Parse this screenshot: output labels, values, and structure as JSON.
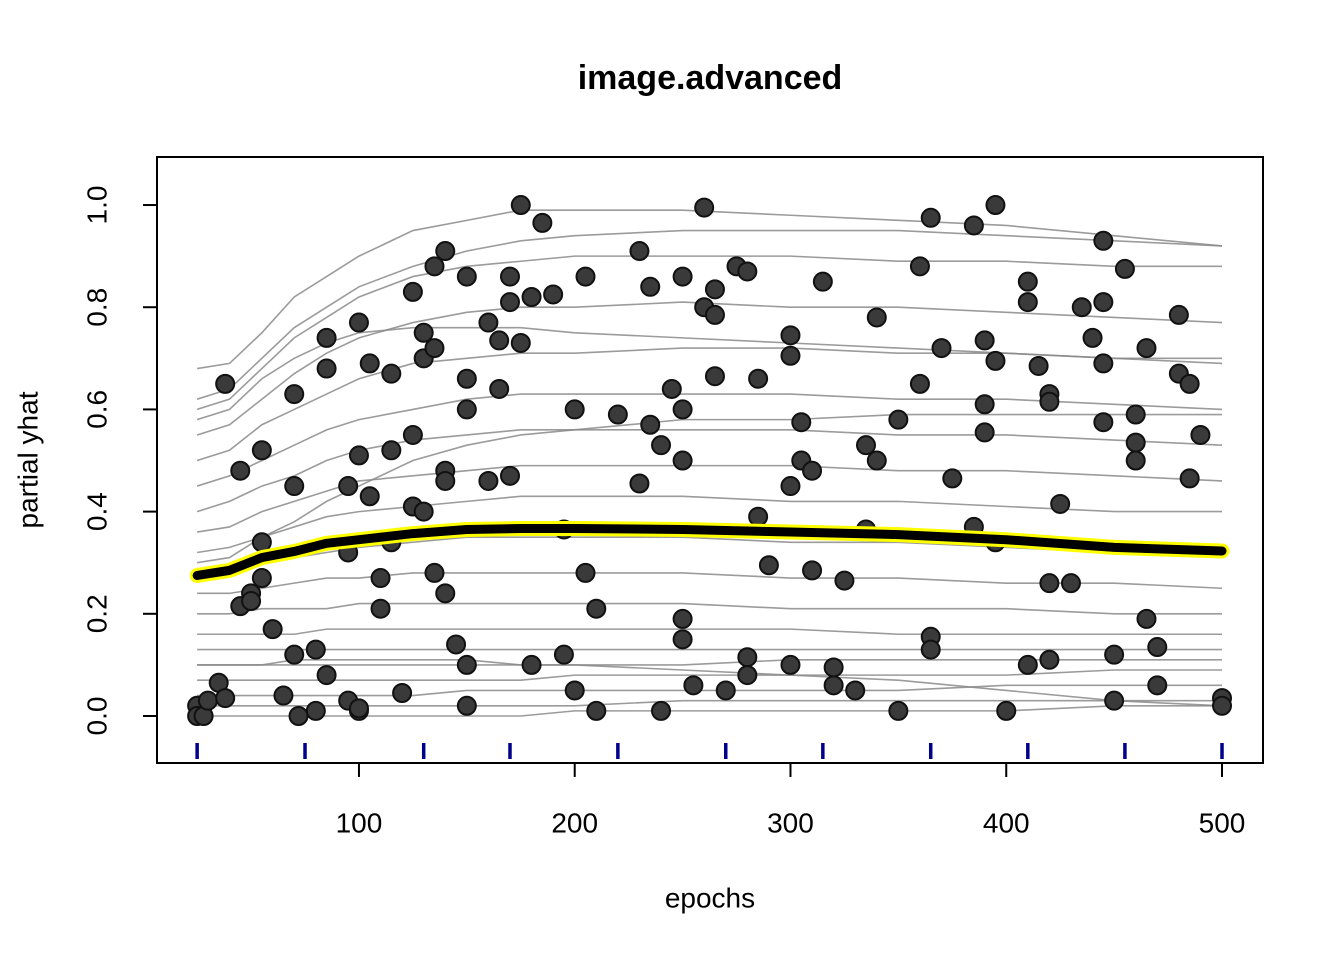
{
  "chart_data": {
    "type": "ice",
    "title": "image.advanced",
    "xlabel": "epochs",
    "ylabel": "partial yhat",
    "xlim": [
      6.4,
      519
    ],
    "ylim": [
      -0.092,
      1.094
    ],
    "xticks": [
      100,
      200,
      300,
      400,
      500
    ],
    "yticks": [
      {
        "value": 0,
        "label": "0.0"
      },
      0.2,
      0.4,
      0.6,
      0.8,
      {
        "value": 1,
        "label": "1.0"
      }
    ],
    "x": [
      25,
      40,
      55,
      70,
      85,
      100,
      125,
      150,
      175,
      200,
      250,
      300,
      350,
      400,
      450,
      500
    ],
    "ice_color": "#8a8a8a",
    "ice_lines": [
      [
        0.68,
        0.69,
        0.75,
        0.82,
        0.86,
        0.9,
        0.95,
        0.97,
        0.99,
        0.99,
        0.99,
        0.98,
        0.97,
        0.96,
        0.94,
        0.92
      ],
      [
        0.6,
        0.62,
        0.68,
        0.74,
        0.78,
        0.82,
        0.86,
        0.88,
        0.89,
        0.9,
        0.9,
        0.9,
        0.89,
        0.89,
        0.88,
        0.88
      ],
      [
        0.55,
        0.57,
        0.62,
        0.67,
        0.71,
        0.74,
        0.77,
        0.79,
        0.8,
        0.8,
        0.81,
        0.8,
        0.8,
        0.79,
        0.78,
        0.77
      ],
      [
        0.5,
        0.52,
        0.57,
        0.6,
        0.63,
        0.66,
        0.69,
        0.7,
        0.71,
        0.71,
        0.72,
        0.72,
        0.71,
        0.71,
        0.7,
        0.69
      ],
      [
        0.45,
        0.47,
        0.5,
        0.53,
        0.56,
        0.58,
        0.6,
        0.62,
        0.63,
        0.63,
        0.63,
        0.63,
        0.62,
        0.62,
        0.61,
        0.6
      ],
      [
        0.4,
        0.42,
        0.45,
        0.47,
        0.5,
        0.52,
        0.54,
        0.55,
        0.56,
        0.56,
        0.56,
        0.56,
        0.55,
        0.55,
        0.54,
        0.53
      ],
      [
        0.36,
        0.37,
        0.4,
        0.42,
        0.44,
        0.46,
        0.47,
        0.48,
        0.49,
        0.49,
        0.49,
        0.49,
        0.48,
        0.48,
        0.47,
        0.46
      ],
      [
        0.32,
        0.33,
        0.35,
        0.37,
        0.39,
        0.4,
        0.41,
        0.42,
        0.43,
        0.43,
        0.43,
        0.42,
        0.42,
        0.41,
        0.4,
        0.4
      ],
      [
        0.28,
        0.29,
        0.3,
        0.31,
        0.32,
        0.33,
        0.34,
        0.35,
        0.35,
        0.35,
        0.35,
        0.34,
        0.34,
        0.33,
        0.32,
        0.31
      ],
      [
        0.24,
        0.24,
        0.25,
        0.26,
        0.27,
        0.27,
        0.28,
        0.28,
        0.28,
        0.28,
        0.28,
        0.27,
        0.27,
        0.26,
        0.26,
        0.25
      ],
      [
        0.2,
        0.2,
        0.21,
        0.21,
        0.21,
        0.22,
        0.22,
        0.22,
        0.22,
        0.22,
        0.22,
        0.21,
        0.21,
        0.21,
        0.2,
        0.2
      ],
      [
        0.16,
        0.16,
        0.16,
        0.16,
        0.17,
        0.17,
        0.17,
        0.17,
        0.17,
        0.17,
        0.17,
        0.17,
        0.16,
        0.16,
        0.16,
        0.16
      ],
      [
        0.13,
        0.13,
        0.13,
        0.13,
        0.13,
        0.13,
        0.13,
        0.13,
        0.13,
        0.13,
        0.13,
        0.13,
        0.13,
        0.13,
        0.13,
        0.13
      ],
      [
        0.1,
        0.1,
        0.1,
        0.1,
        0.1,
        0.1,
        0.1,
        0.1,
        0.1,
        0.1,
        0.1,
        0.11,
        0.11,
        0.11,
        0.11,
        0.11
      ],
      [
        0.07,
        0.07,
        0.07,
        0.07,
        0.07,
        0.07,
        0.07,
        0.07,
        0.07,
        0.08,
        0.08,
        0.08,
        0.08,
        0.08,
        0.09,
        0.09
      ],
      [
        0.04,
        0.04,
        0.04,
        0.04,
        0.04,
        0.04,
        0.04,
        0.05,
        0.05,
        0.05,
        0.05,
        0.05,
        0.05,
        0.06,
        0.06,
        0.06
      ],
      [
        0.02,
        0.02,
        0.02,
        0.02,
        0.02,
        0.02,
        0.02,
        0.02,
        0.02,
        0.02,
        0.03,
        0.03,
        0.03,
        0.03,
        0.03,
        0.03
      ],
      [
        0,
        0,
        0,
        0,
        0,
        0,
        0,
        0,
        0,
        0.01,
        0.01,
        0.01,
        0.01,
        0.01,
        0.02,
        0.02
      ],
      [
        0.58,
        0.6,
        0.66,
        0.7,
        0.73,
        0.75,
        0.76,
        0.76,
        0.76,
        0.75,
        0.74,
        0.73,
        0.72,
        0.71,
        0.7,
        0.7
      ],
      [
        0.3,
        0.31,
        0.35,
        0.38,
        0.42,
        0.45,
        0.5,
        0.53,
        0.55,
        0.56,
        0.58,
        0.58,
        0.59,
        0.59,
        0.59,
        0.59
      ],
      [
        0.62,
        0.64,
        0.7,
        0.76,
        0.8,
        0.84,
        0.88,
        0.91,
        0.93,
        0.94,
        0.95,
        0.95,
        0.95,
        0.94,
        0.93,
        0.92
      ],
      [
        0.1,
        0.1,
        0.1,
        0.11,
        0.11,
        0.11,
        0.11,
        0.11,
        0.1,
        0.1,
        0.09,
        0.08,
        0.07,
        0.05,
        0.03,
        0.02
      ]
    ],
    "pdp": [
      0.275,
      0.285,
      0.31,
      0.322,
      0.338,
      0.345,
      0.357,
      0.365,
      0.367,
      0.367,
      0.365,
      0.36,
      0.355,
      0.345,
      0.33,
      0.323
    ],
    "pdp_color": "#000000",
    "pdp_outline": "#ffff00",
    "point_color": "#3a3a3a",
    "points_x": [
      25,
      25,
      28,
      30,
      35,
      38,
      38,
      45,
      45,
      50,
      50,
      55,
      55,
      55,
      60,
      65,
      70,
      70,
      70,
      72,
      80,
      80,
      85,
      85,
      85,
      95,
      95,
      95,
      100,
      100,
      100,
      105,
      105,
      110,
      110,
      115,
      115,
      115,
      120,
      125,
      125,
      125,
      130,
      130,
      130,
      135,
      135,
      135,
      140,
      140,
      140,
      140,
      145,
      150,
      150,
      150,
      150,
      160,
      160,
      165,
      165,
      170,
      170,
      170,
      175,
      175,
      180,
      180,
      185,
      190,
      195,
      195,
      200,
      205,
      205,
      210,
      210,
      220,
      230,
      230,
      235,
      235,
      240,
      245,
      250,
      250,
      250,
      250,
      250,
      255,
      260,
      260,
      265,
      265,
      265,
      275,
      280,
      280,
      280,
      285,
      285,
      290,
      300,
      300,
      300,
      300,
      305,
      305,
      310,
      310,
      315,
      320,
      320,
      325,
      335,
      335,
      340,
      340,
      350,
      360,
      360,
      365,
      365,
      365,
      370,
      375,
      385,
      385,
      390,
      390,
      390,
      395,
      395,
      395,
      410,
      410,
      410,
      415,
      420,
      420,
      420,
      420,
      425,
      430,
      435,
      440,
      445,
      445,
      445,
      445,
      450,
      455,
      460,
      460,
      460,
      465,
      465,
      470,
      480,
      480,
      485,
      485,
      490,
      500,
      500,
      100,
      150,
      200,
      240,
      270,
      330,
      350,
      400,
      450,
      470
    ],
    "points_y": [
      0.02,
      0,
      0,
      0.03,
      0.065,
      0.035,
      0.65,
      0.48,
      0.215,
      0.24,
      0.225,
      0.52,
      0.34,
      0.27,
      0.17,
      0.04,
      0.63,
      0.45,
      0.12,
      0,
      0.13,
      0.01,
      0.74,
      0.68,
      0.08,
      0.45,
      0.32,
      0.03,
      0.77,
      0.51,
      0.01,
      0.69,
      0.43,
      0.27,
      0.21,
      0.67,
      0.52,
      0.34,
      0.045,
      0.83,
      0.55,
      0.41,
      0.75,
      0.7,
      0.4,
      0.88,
      0.72,
      0.28,
      0.91,
      0.48,
      0.46,
      0.24,
      0.14,
      0.86,
      0.66,
      0.6,
      0.1,
      0.77,
      0.46,
      0.64,
      0.735,
      0.86,
      0.81,
      0.47,
      1,
      0.73,
      0.82,
      0.1,
      0.965,
      0.825,
      0.12,
      0.365,
      0.6,
      0.86,
      0.28,
      0.21,
      0.01,
      0.59,
      0.91,
      0.455,
      0.84,
      0.57,
      0.53,
      0.64,
      0.86,
      0.6,
      0.5,
      0.19,
      0.15,
      0.06,
      0.995,
      0.8,
      0.835,
      0.785,
      0.665,
      0.88,
      0.87,
      0.115,
      0.08,
      0.66,
      0.39,
      0.295,
      0.745,
      0.705,
      0.45,
      0.1,
      0.575,
      0.5,
      0.48,
      0.285,
      0.85,
      0.095,
      0.06,
      0.265,
      0.53,
      0.365,
      0.78,
      0.5,
      0.58,
      0.88,
      0.65,
      0.975,
      0.155,
      0.13,
      0.72,
      0.465,
      0.96,
      0.37,
      0.735,
      0.61,
      0.555,
      1,
      0.695,
      0.34,
      0.85,
      0.81,
      0.1,
      0.685,
      0.63,
      0.615,
      0.26,
      0.11,
      0.415,
      0.26,
      0.8,
      0.74,
      0.93,
      0.81,
      0.69,
      0.575,
      0.12,
      0.875,
      0.59,
      0.535,
      0.5,
      0.72,
      0.19,
      0.135,
      0.785,
      0.67,
      0.65,
      0.465,
      0.55,
      0.035,
      0.02,
      0.015,
      0.02,
      0.05,
      0.01,
      0.05,
      0.05,
      0.01,
      0.01,
      0.03,
      0.06
    ],
    "rug": [
      25,
      75,
      130,
      170,
      220,
      270,
      315,
      365,
      410,
      455,
      500
    ],
    "rug_color": "#00008b"
  }
}
